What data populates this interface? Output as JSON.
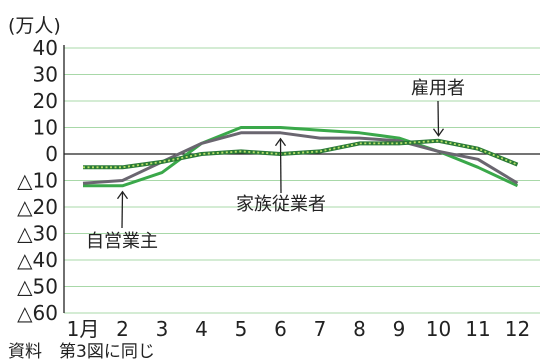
{
  "chart_data": {
    "type": "line",
    "unit_label": "(万人)",
    "categories": [
      "1月",
      "2",
      "3",
      "4",
      "5",
      "6",
      "7",
      "8",
      "9",
      "10",
      "11",
      "12"
    ],
    "y_tick_labels": [
      "40",
      "30",
      "20",
      "10",
      "0",
      "△10",
      "△20",
      "△30",
      "△40",
      "△50",
      "△60"
    ],
    "y_ticks": [
      40,
      30,
      20,
      10,
      0,
      -10,
      -20,
      -30,
      -40,
      -50,
      -60
    ],
    "ylim": [
      -60,
      40
    ],
    "grid": true,
    "series": [
      {
        "name": "自営業主",
        "color": "#3aa84a",
        "style": "solid",
        "values": [
          -12,
          -12,
          -7,
          4,
          10,
          10,
          9,
          8,
          6,
          1,
          -5,
          -12
        ]
      },
      {
        "name": "家族従業者",
        "color": "#6a6670",
        "style": "solid",
        "values": [
          -11,
          -10,
          -3,
          4,
          8,
          8,
          6,
          6,
          5,
          1,
          -2,
          -11
        ]
      },
      {
        "name": "雇用者",
        "color": "#3aa84a",
        "style": "dotted",
        "values": [
          -5,
          -5,
          -3,
          0,
          1,
          0,
          1,
          4,
          4,
          5,
          2,
          -4
        ]
      }
    ],
    "annotations": [
      {
        "text": "雇用者",
        "series": "雇用者"
      },
      {
        "text": "家族従業者",
        "series": "家族従業者"
      },
      {
        "text": "自営業主",
        "series": "自営業主"
      }
    ],
    "source": "資料　第3図に同じ"
  },
  "colors": {
    "axis": "#222222",
    "grid": "#a8d8a8",
    "zero_line": "#222222"
  }
}
